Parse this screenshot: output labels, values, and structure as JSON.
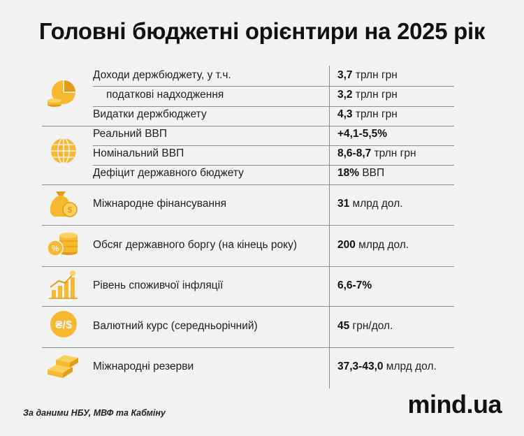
{
  "title": "Головні бюджетні орієнтири на 2025 рік",
  "rows": [
    {
      "label": "Доходи держбюджету, у т.ч.",
      "bold": "3,7",
      "rest": " трлн грн"
    },
    {
      "label": "податкові надходження",
      "bold": "3,2",
      "rest": " трлн грн"
    },
    {
      "label": "Видатки держбюджету",
      "bold": "4,3",
      "rest": " трлн грн"
    },
    {
      "label": "Реальний ВВП",
      "bold": "+4,1-5,5%",
      "rest": ""
    },
    {
      "label": "Номінальний ВВП",
      "bold": "8,6-8,7",
      "rest": " трлн грн"
    },
    {
      "label": "Дефіцит державного бюджету",
      "bold": "18%",
      "rest": " ВВП"
    },
    {
      "label": "Міжнародне фінансування",
      "bold": "31",
      "rest": " млрд дол."
    },
    {
      "label": "Обсяг державного боргу (на кінець року)",
      "bold": "200",
      "rest": " млрд дол."
    },
    {
      "label": "Рівень споживчої інфляції",
      "bold": "6,6-7%",
      "rest": ""
    },
    {
      "label": "Валютний курс (середньорічний)",
      "bold": "45",
      "rest": " грн/дол."
    },
    {
      "label": "Міжнародні резерви",
      "bold": "37,3-43,0",
      "rest": " млрд дол."
    }
  ],
  "icons": [
    "pie-chart-coins-icon",
    "globe-icon",
    "money-bag-coins-icon",
    "coin-stack-percent-icon",
    "inflation-chart-icon",
    "currency-exchange-icon",
    "gold-bars-icon"
  ],
  "accent_color": "#f5b82e",
  "source": "За даними НБУ, МВФ та Кабміну",
  "logo": "mind.ua"
}
